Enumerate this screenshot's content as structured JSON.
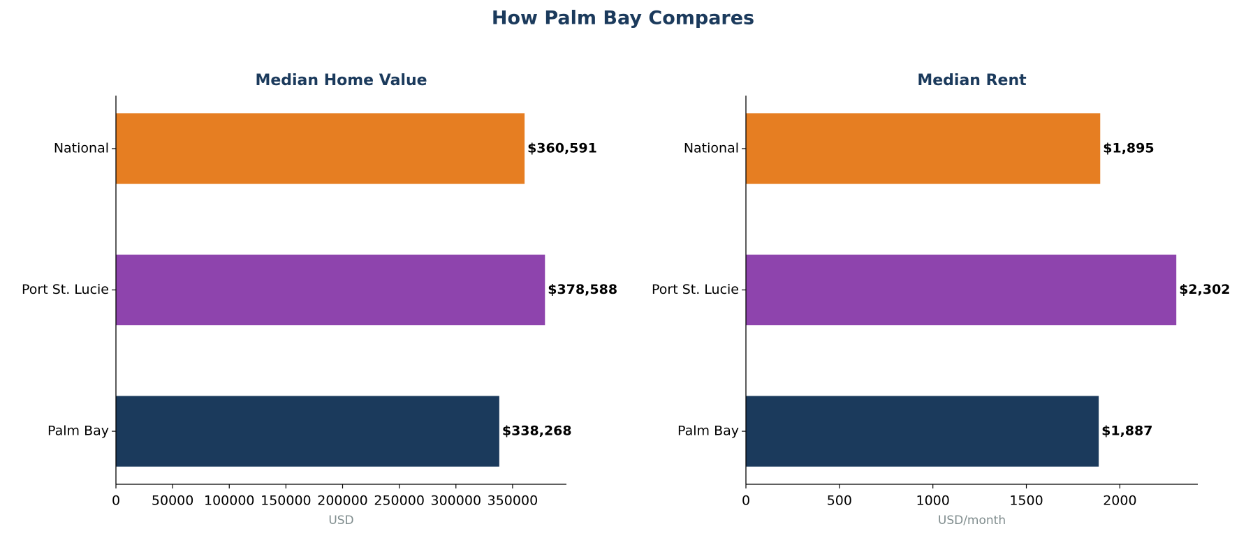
{
  "title": "How Palm Bay Compares",
  "chart_data": [
    {
      "type": "bar",
      "orientation": "horizontal",
      "title": "Median Home Value",
      "xlabel": "USD",
      "categories": [
        "Palm Bay",
        "Port St. Lucie",
        "National"
      ],
      "values": [
        338268,
        378588,
        360591
      ],
      "value_labels": [
        "$338,268",
        "$378,588",
        "$360,591"
      ],
      "colors": [
        "#1b3a5c",
        "#8e44ad",
        "#e67e22"
      ],
      "xlim": [
        0,
        397517
      ],
      "xticks": [
        0,
        50000,
        100000,
        150000,
        200000,
        250000,
        300000,
        350000
      ]
    },
    {
      "type": "bar",
      "orientation": "horizontal",
      "title": "Median Rent",
      "xlabel": "USD/month",
      "categories": [
        "Palm Bay",
        "Port St. Lucie",
        "National"
      ],
      "values": [
        1887,
        2302,
        1895
      ],
      "value_labels": [
        "$1,887",
        "$2,302",
        "$1,895"
      ],
      "colors": [
        "#1b3a5c",
        "#8e44ad",
        "#e67e22"
      ],
      "xlim": [
        0,
        2417
      ],
      "xticks": [
        0,
        500,
        1000,
        1500,
        2000
      ]
    }
  ]
}
